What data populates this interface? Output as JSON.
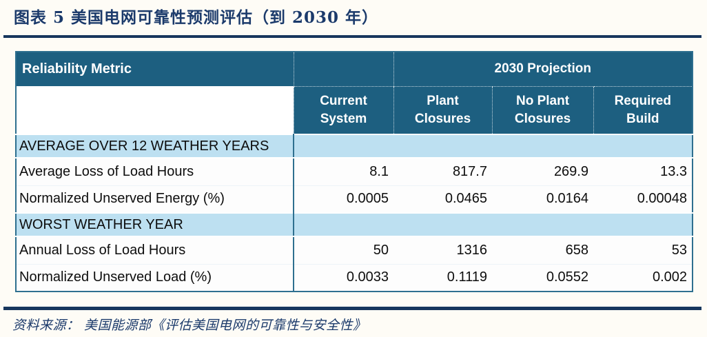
{
  "title": "图表 5  美国电网可靠性预测评估（到 2030 年）",
  "source": "资料来源： 美国能源部《评估美国电网的可靠性与安全性》",
  "colors": {
    "header_teal": "#1d5f80",
    "section_blue": "#bde0f1",
    "border_teal": "#2e6f8f",
    "navy_accent": "#17365d",
    "title_navy": "#1b3a6b"
  },
  "table": {
    "header": {
      "metric_label": "Reliability Metric",
      "projection_label": "2030 Projection",
      "columns": [
        "Current System",
        "Plant Closures",
        "No Plant Closures",
        "Required Build"
      ]
    },
    "sections": [
      {
        "title": "AVERAGE OVER 12 WEATHER YEARS",
        "rows": [
          {
            "label": "Average Loss of Load Hours",
            "values": [
              "8.1",
              "817.7",
              "269.9",
              "13.3"
            ]
          },
          {
            "label": "Normalized Unserved Energy (%)",
            "values": [
              "0.0005",
              "0.0465",
              "0.0164",
              "0.00048"
            ]
          }
        ]
      },
      {
        "title": "WORST WEATHER YEAR",
        "rows": [
          {
            "label": "Annual Loss of Load Hours",
            "values": [
              "50",
              "1316",
              "658",
              "53"
            ]
          },
          {
            "label": "Normalized Unserved Load (%)",
            "values": [
              "0.0033",
              "0.1119",
              "0.0552",
              "0.002"
            ]
          }
        ]
      }
    ]
  }
}
